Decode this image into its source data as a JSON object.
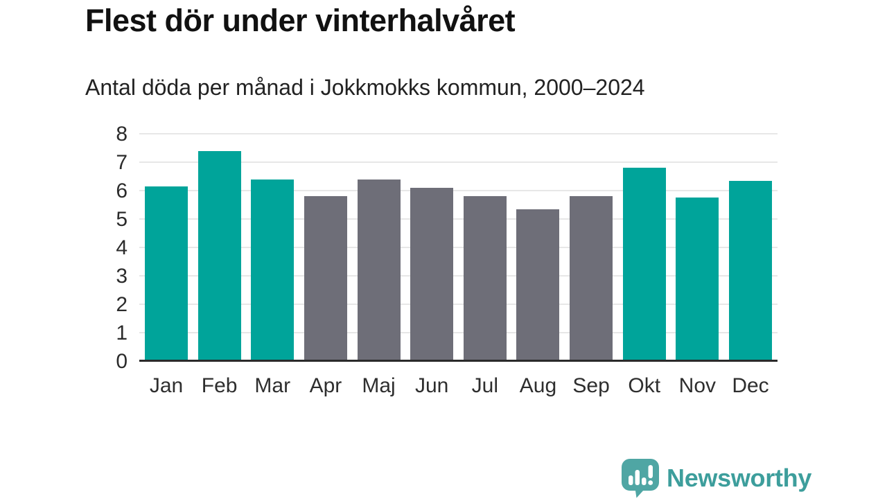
{
  "header": {
    "title": "Flest dör under vinterhalvåret",
    "subtitle": "Antal döda per månad i Jokkmokks kommun, 2000–2024"
  },
  "chart_data": {
    "type": "bar",
    "title": "Flest dör under vinterhalvåret",
    "subtitle": "Antal döda per månad i Jokkmokks kommun, 2000–2024",
    "categories": [
      "Jan",
      "Feb",
      "Mar",
      "Apr",
      "Maj",
      "Jun",
      "Jul",
      "Aug",
      "Sep",
      "Okt",
      "Nov",
      "Dec"
    ],
    "values": [
      6.15,
      7.4,
      6.4,
      5.8,
      6.4,
      6.1,
      5.8,
      5.35,
      5.8,
      6.8,
      5.75,
      6.35
    ],
    "groups": [
      "winter",
      "winter",
      "winter",
      "summer",
      "summer",
      "summer",
      "summer",
      "summer",
      "summer",
      "winter",
      "winter",
      "winter"
    ],
    "palette": {
      "winter": "#00a49a",
      "summer": "#6e6e78"
    },
    "xlabel": "",
    "ylabel": "",
    "ylim": [
      0,
      8
    ],
    "yticks": [
      0,
      1,
      2,
      3,
      4,
      5,
      6,
      7,
      8
    ],
    "grid": true,
    "legend": "none",
    "axis_colors": {
      "grid": "#e7e7e7",
      "baseline": "#2a2a2a",
      "tick_text": "#2b2b2b"
    }
  },
  "branding": {
    "name": "Newsworthy",
    "icon": "newsworthy-speech-bubble-chart-icon",
    "icon_color": "#4fa6a4",
    "text_color": "#3d9e9c"
  }
}
